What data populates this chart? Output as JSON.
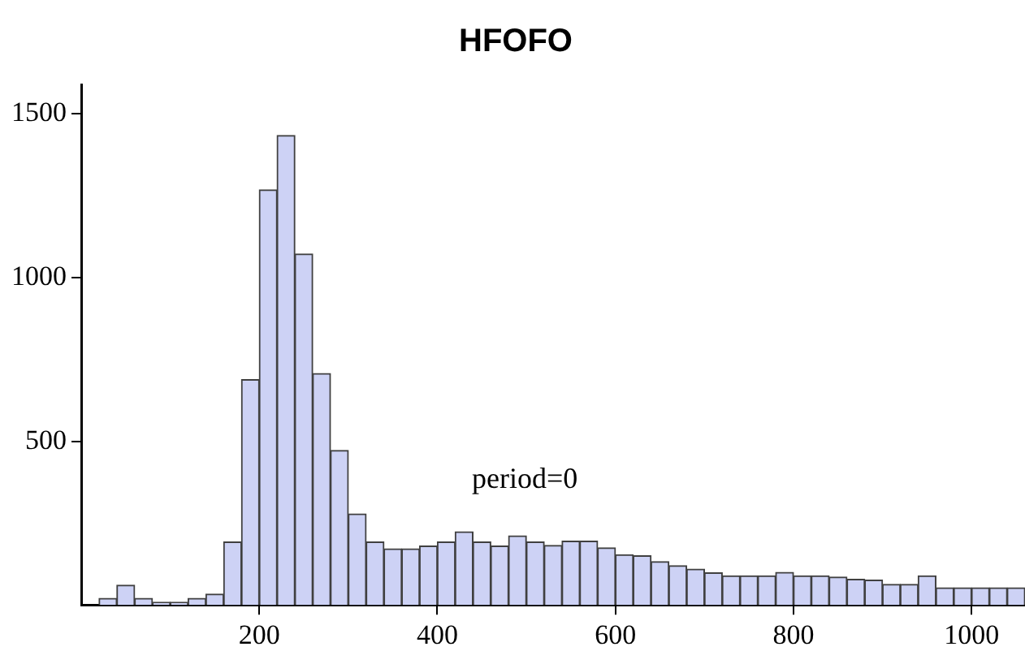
{
  "chart_data": {
    "type": "histogram",
    "title": "HFOFO",
    "annotations": [
      "period=0"
    ],
    "bins": [
      20,
      40,
      60,
      80,
      100,
      120,
      140,
      160,
      180,
      200,
      220,
      240,
      260,
      280,
      300,
      320,
      340,
      360,
      380,
      400,
      420,
      440,
      460,
      480,
      500,
      520,
      540,
      560,
      580,
      600,
      620,
      640,
      660,
      680,
      700,
      720,
      740,
      760,
      780,
      800,
      820,
      840,
      860,
      880,
      900,
      920,
      940,
      960,
      980,
      1000,
      1020,
      1040,
      1060
    ],
    "values": [
      20,
      60,
      20,
      8,
      8,
      20,
      33,
      192,
      688,
      1268,
      1434,
      1072,
      707,
      472,
      278,
      192,
      171,
      171,
      180,
      192,
      223,
      192,
      180,
      211,
      192,
      182,
      195,
      195,
      174,
      153,
      150,
      132,
      120,
      109,
      98,
      89,
      89,
      89,
      99,
      89,
      89,
      85,
      78,
      76,
      63,
      63,
      89,
      52,
      52,
      52,
      52,
      52
    ],
    "color": "#cdd2f5",
    "xlim": [
      0,
      1060
    ],
    "ylim": [
      0,
      1590
    ],
    "xticks": [
      200,
      400,
      600,
      800,
      1000
    ],
    "yticks": [
      500,
      1000,
      1500
    ]
  }
}
